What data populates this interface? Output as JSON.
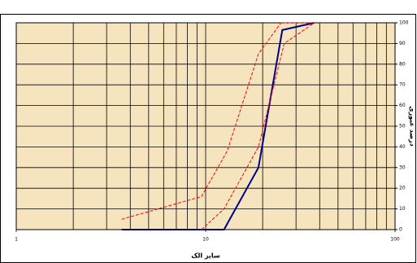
{
  "chart_data": {
    "type": "line",
    "x_scale": "log",
    "xlabel": "سایز الک",
    "ylabel": "درصد عبوری",
    "xlim": [
      1,
      100
    ],
    "xticks": [
      1,
      10,
      100
    ],
    "xgrid": [
      2,
      3,
      4,
      5,
      6,
      7,
      8,
      9,
      20,
      30,
      40,
      50,
      60,
      70,
      80,
      90
    ],
    "ylim": [
      0,
      100
    ],
    "yticks": [
      0,
      10,
      20,
      30,
      40,
      50,
      60,
      70,
      80,
      90,
      100
    ],
    "grid": true,
    "background": "#f5e4bd",
    "series": [
      {
        "name": null,
        "color": "#000080",
        "style": "solid",
        "x": [
          3.6,
          12.5,
          19,
          25.4,
          37.5
        ],
        "values": [
          0,
          0,
          30,
          96.5,
          100
        ]
      },
      {
        "name": null,
        "color": "#ff0000",
        "style": "dashed",
        "x": [
          9.5,
          12.5,
          19,
          26,
          37.5
        ],
        "values": [
          0,
          10,
          40,
          90,
          100
        ]
      },
      {
        "name": null,
        "color": "#ff0000",
        "style": "dashed",
        "x": [
          3.6,
          9.5,
          13,
          19,
          25,
          37.5
        ],
        "values": [
          5,
          16,
          38,
          85,
          100,
          100
        ]
      }
    ]
  }
}
